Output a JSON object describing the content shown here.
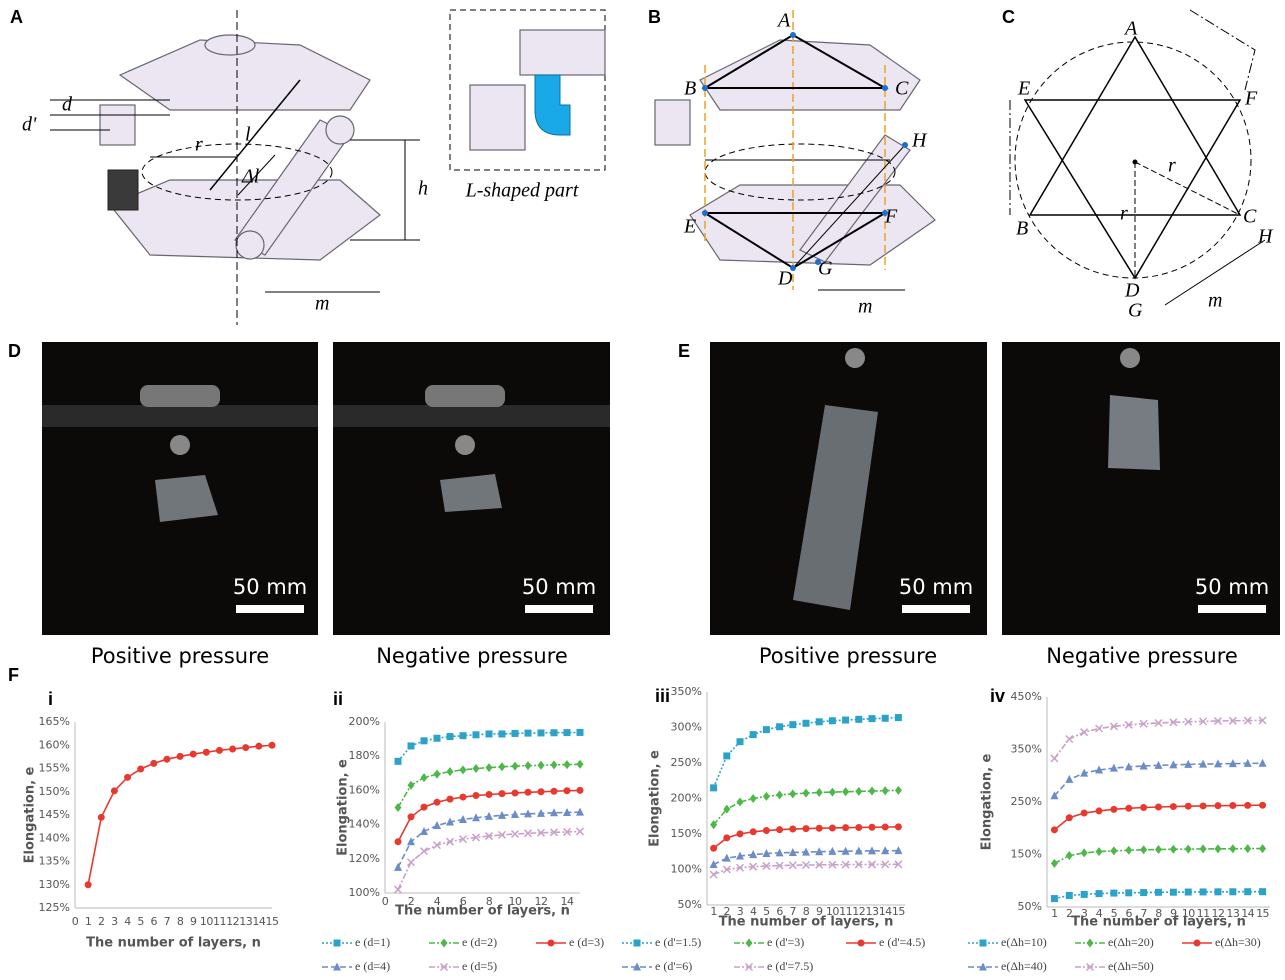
{
  "panels": {
    "A": {
      "label": "A",
      "annotations": [
        "d",
        "d'",
        "r",
        "l",
        "Δl",
        "h",
        "m"
      ],
      "inset_caption": "L-shaped part"
    },
    "B": {
      "label": "B",
      "points": [
        "A",
        "B",
        "C",
        "D",
        "E",
        "F",
        "G",
        "H"
      ],
      "dimension": "m"
    },
    "C": {
      "label": "C",
      "points": [
        "A",
        "B",
        "C",
        "D",
        "E",
        "F",
        "G",
        "H"
      ],
      "annotations": [
        "r",
        "r",
        "m"
      ]
    },
    "D": {
      "label": "D",
      "photos": [
        {
          "scale_bar": "50 mm",
          "caption": "Positive pressure"
        },
        {
          "scale_bar": "50 mm",
          "caption": "Negative pressure"
        }
      ]
    },
    "E": {
      "label": "E",
      "photos": [
        {
          "scale_bar": "50 mm",
          "caption": "Positive pressure"
        },
        {
          "scale_bar": "50 mm",
          "caption": "Negative pressure"
        }
      ]
    },
    "F": {
      "label": "F"
    }
  },
  "chart_data": [
    {
      "type": "line",
      "panel_label": "i",
      "ylabel": "Elongation, e",
      "xlabel": "The number of layers, n",
      "xlim": [
        0,
        15
      ],
      "xticks": [
        0,
        1,
        2,
        3,
        4,
        5,
        6,
        7,
        8,
        9,
        10,
        11,
        12,
        13,
        14,
        15
      ],
      "ylim": [
        125,
        165
      ],
      "yticks": [
        {
          "value": 125,
          "label": "125%"
        },
        {
          "value": 130,
          "label": "130%"
        },
        {
          "value": 135,
          "label": "135%"
        },
        {
          "value": 140,
          "label": "140%"
        },
        {
          "value": 145,
          "label": "145%"
        },
        {
          "value": 150,
          "label": "150%"
        },
        {
          "value": 155,
          "label": "155%"
        },
        {
          "value": 160,
          "label": "160%"
        },
        {
          "value": 165,
          "label": "165%"
        }
      ],
      "grid": false,
      "x": [
        1,
        2,
        3,
        4,
        5,
        6,
        7,
        8,
        9,
        10,
        11,
        12,
        13,
        14,
        15
      ],
      "values": [
        130,
        144.5,
        150.2,
        153.1,
        154.9,
        156.1,
        157,
        157.6,
        158.1,
        158.5,
        158.9,
        159.2,
        159.5,
        159.8,
        160
      ],
      "color": "#e8392f",
      "marker": "circle",
      "dash": "solid"
    },
    {
      "type": "line",
      "panel_label": "ii",
      "ylabel": "Elongation, e",
      "xlabel": "The number of layers, n",
      "xlim": [
        0,
        15
      ],
      "xticks": [
        0,
        2,
        4,
        6,
        8,
        10,
        12,
        14
      ],
      "ylim": [
        100,
        200
      ],
      "yticks": [
        {
          "value": 100,
          "label": "100%"
        },
        {
          "value": 120,
          "label": "120%"
        },
        {
          "value": 140,
          "label": "140%"
        },
        {
          "value": 160,
          "label": "160%"
        },
        {
          "value": 180,
          "label": "180%"
        },
        {
          "value": 200,
          "label": "200%"
        }
      ],
      "grid": false,
      "x": [
        1,
        2,
        3,
        4,
        5,
        6,
        7,
        8,
        9,
        10,
        11,
        12,
        13,
        14,
        15
      ],
      "series": [
        {
          "name": "e (d=1)",
          "color": "#2ba3c8",
          "marker": "square",
          "dash": "dot",
          "values": [
            177,
            186,
            189,
            190.5,
            191.5,
            192,
            192.5,
            193,
            193,
            193.3,
            193.5,
            193.6,
            193.7,
            193.8,
            193.9
          ]
        },
        {
          "name": "e (d=2)",
          "color": "#4db848",
          "marker": "diamond",
          "dash": "dashdot",
          "values": [
            150,
            163,
            167.5,
            169.5,
            171,
            172,
            172.8,
            173.3,
            173.8,
            174.2,
            174.5,
            174.7,
            174.9,
            175.1,
            175.3
          ]
        },
        {
          "name": "e (d=3)",
          "color": "#e8392f",
          "marker": "circle",
          "dash": "solid",
          "values": [
            130,
            144.5,
            150.2,
            153.1,
            154.9,
            156.1,
            157,
            157.6,
            158.1,
            158.5,
            158.9,
            159.2,
            159.5,
            159.8,
            160
          ]
        },
        {
          "name": "e (d=4)",
          "color": "#6b8cc6",
          "marker": "triangle",
          "dash": "dash",
          "values": [
            115,
            130,
            136,
            139.5,
            141.5,
            143,
            144,
            144.8,
            145.4,
            145.9,
            146.3,
            146.6,
            146.9,
            147.1,
            147.3
          ]
        },
        {
          "name": "e (d=5)",
          "color": "#c9a0c9",
          "marker": "x",
          "dash": "dashdot",
          "values": [
            102,
            118,
            124.5,
            128,
            130,
            131.5,
            132.5,
            133.3,
            134,
            134.5,
            134.9,
            135.2,
            135.5,
            135.7,
            136
          ]
        }
      ]
    },
    {
      "type": "line",
      "panel_label": "iii",
      "ylabel": "Elongation, e",
      "xlabel": "The number of layers, n",
      "xlim": [
        0.5,
        15.5
      ],
      "xticks": [
        1,
        2,
        3,
        4,
        5,
        6,
        7,
        8,
        9,
        10,
        11,
        12,
        13,
        14,
        15
      ],
      "ylim": [
        50,
        350
      ],
      "yticks": [
        {
          "value": 50,
          "label": "50%"
        },
        {
          "value": 100,
          "label": "100%"
        },
        {
          "value": 150,
          "label": "150%"
        },
        {
          "value": 200,
          "label": "200%"
        },
        {
          "value": 250,
          "label": "250%"
        },
        {
          "value": 300,
          "label": "300%"
        },
        {
          "value": 350,
          "label": "350%"
        }
      ],
      "grid": false,
      "x": [
        1,
        2,
        3,
        4,
        5,
        6,
        7,
        8,
        9,
        10,
        11,
        12,
        13,
        14,
        15
      ],
      "series": [
        {
          "name": "e (d'=1.5)",
          "color": "#2ba3c8",
          "marker": "square",
          "dash": "dot",
          "values": [
            215,
            260,
            280,
            290,
            297,
            301,
            304,
            306,
            308,
            309.5,
            310.5,
            311.5,
            312.5,
            313,
            314
          ]
        },
        {
          "name": "e (d'=3)",
          "color": "#4db848",
          "marker": "diamond",
          "dash": "dashdot",
          "values": [
            163,
            185,
            195,
            200,
            203,
            205,
            206.5,
            207.5,
            208.5,
            209,
            209.5,
            210,
            210.5,
            211,
            211.5
          ]
        },
        {
          "name": "e (d'=4.5)",
          "color": "#e8392f",
          "marker": "circle",
          "dash": "solid",
          "values": [
            130,
            144.5,
            150.2,
            153.1,
            154.9,
            156.1,
            157,
            157.6,
            158.1,
            158.5,
            158.9,
            159.2,
            159.5,
            159.8,
            160
          ]
        },
        {
          "name": "e (d'=6)",
          "color": "#6b8cc6",
          "marker": "triangle",
          "dash": "dash",
          "values": [
            107,
            116,
            119,
            121,
            122.5,
            123.5,
            124,
            124.5,
            125,
            125.5,
            125.7,
            126,
            126.2,
            126.4,
            126.5
          ]
        },
        {
          "name": "e (d'=7.5)",
          "color": "#c9a0c9",
          "marker": "x",
          "dash": "dashdot",
          "values": [
            93,
            100,
            102.5,
            104,
            105,
            105.5,
            106,
            106.3,
            106.5,
            106.7,
            106.9,
            107,
            107.1,
            107.2,
            107.3
          ]
        }
      ]
    },
    {
      "type": "line",
      "panel_label": "iv",
      "ylabel": "Elongation, e",
      "xlabel": "The number of layers, n",
      "xlim": [
        0.5,
        15.5
      ],
      "xticks": [
        1,
        2,
        3,
        4,
        5,
        6,
        7,
        8,
        9,
        10,
        11,
        12,
        13,
        14,
        15
      ],
      "ylim": [
        50,
        450
      ],
      "yticks": [
        {
          "value": 50,
          "label": "50%"
        },
        {
          "value": 150,
          "label": "150%"
        },
        {
          "value": 250,
          "label": "250%"
        },
        {
          "value": 350,
          "label": "350%"
        },
        {
          "value": 450,
          "label": "450%"
        }
      ],
      "grid": false,
      "x": [
        1,
        2,
        3,
        4,
        5,
        6,
        7,
        8,
        9,
        10,
        11,
        12,
        13,
        14,
        15
      ],
      "series": [
        {
          "name": "e(Δh=10)",
          "color": "#2ba3c8",
          "marker": "square",
          "dash": "dot",
          "values": [
            66,
            72,
            74,
            75.5,
            76.5,
            77,
            77.5,
            78,
            78.2,
            78.5,
            78.7,
            78.9,
            79,
            79.1,
            79.2
          ]
        },
        {
          "name": "e(Δh=20)",
          "color": "#4db848",
          "marker": "diamond",
          "dash": "dashdot",
          "values": [
            133,
            148,
            153,
            155.5,
            157,
            158,
            159,
            159.5,
            160,
            160.3,
            160.6,
            160.8,
            161,
            161.2,
            161.3
          ]
        },
        {
          "name": "e(Δh=30)",
          "color": "#e8392f",
          "marker": "circle",
          "dash": "solid",
          "values": [
            197,
            220,
            229,
            233,
            236,
            238,
            239.5,
            240.5,
            241.3,
            242,
            242.5,
            243,
            243.3,
            243.6,
            243.9
          ]
        },
        {
          "name": "e(Δh=40)",
          "color": "#6b8cc6",
          "marker": "triangle",
          "dash": "dash",
          "values": [
            262,
            293,
            305,
            311,
            314.5,
            317,
            318.5,
            319.8,
            320.8,
            321.6,
            322.2,
            322.7,
            323.1,
            323.5,
            323.8
          ]
        },
        {
          "name": "e(Δh=50)",
          "color": "#c9a0c9",
          "marker": "x",
          "dash": "dashdot",
          "values": [
            333,
            370,
            383,
            390,
            394,
            397,
            399,
            400.5,
            401.8,
            402.8,
            403.6,
            404.2,
            404.7,
            405.1,
            405.5
          ]
        }
      ]
    }
  ]
}
